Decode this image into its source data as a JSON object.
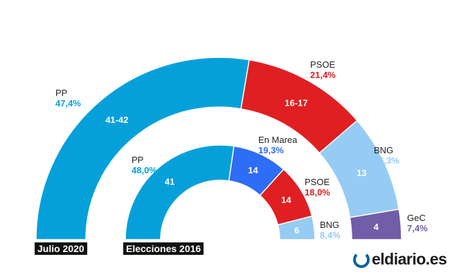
{
  "chart_data": [
    {
      "type": "pie",
      "subtype": "semicircle",
      "label": "Julio 2020",
      "total_seats": 75,
      "series": [
        {
          "name": "PP",
          "seats_label": "41-42",
          "seats": 41.5,
          "percent": "47,4%",
          "color": "#05a0da"
        },
        {
          "name": "PSOE",
          "seats_label": "16-17",
          "seats": 16.5,
          "percent": "21,4%",
          "color": "#e01f22"
        },
        {
          "name": "BNG",
          "seats_label": "13",
          "seats": 13,
          "percent": "16,3%",
          "color": "#96cbf3"
        },
        {
          "name": "GeC",
          "seats_label": "4",
          "seats": 4,
          "percent": "7,4%",
          "color": "#705ea8"
        }
      ]
    },
    {
      "type": "pie",
      "subtype": "semicircle",
      "label": "Elecciones 2016",
      "total_seats": 75,
      "series": [
        {
          "name": "PP",
          "seats_label": "41",
          "seats": 41,
          "percent": "48,0%",
          "color": "#05a0da"
        },
        {
          "name": "En Marea",
          "seats_label": "14",
          "seats": 14,
          "percent": "19,3%",
          "color": "#2e6df5"
        },
        {
          "name": "PSOE",
          "seats_label": "14",
          "seats": 14,
          "percent": "18,0%",
          "color": "#e01f22"
        },
        {
          "name": "BNG",
          "seats_label": "6",
          "seats": 6,
          "percent": "8,4%",
          "color": "#96cbf3"
        }
      ]
    }
  ],
  "logo": "eldiario.es"
}
